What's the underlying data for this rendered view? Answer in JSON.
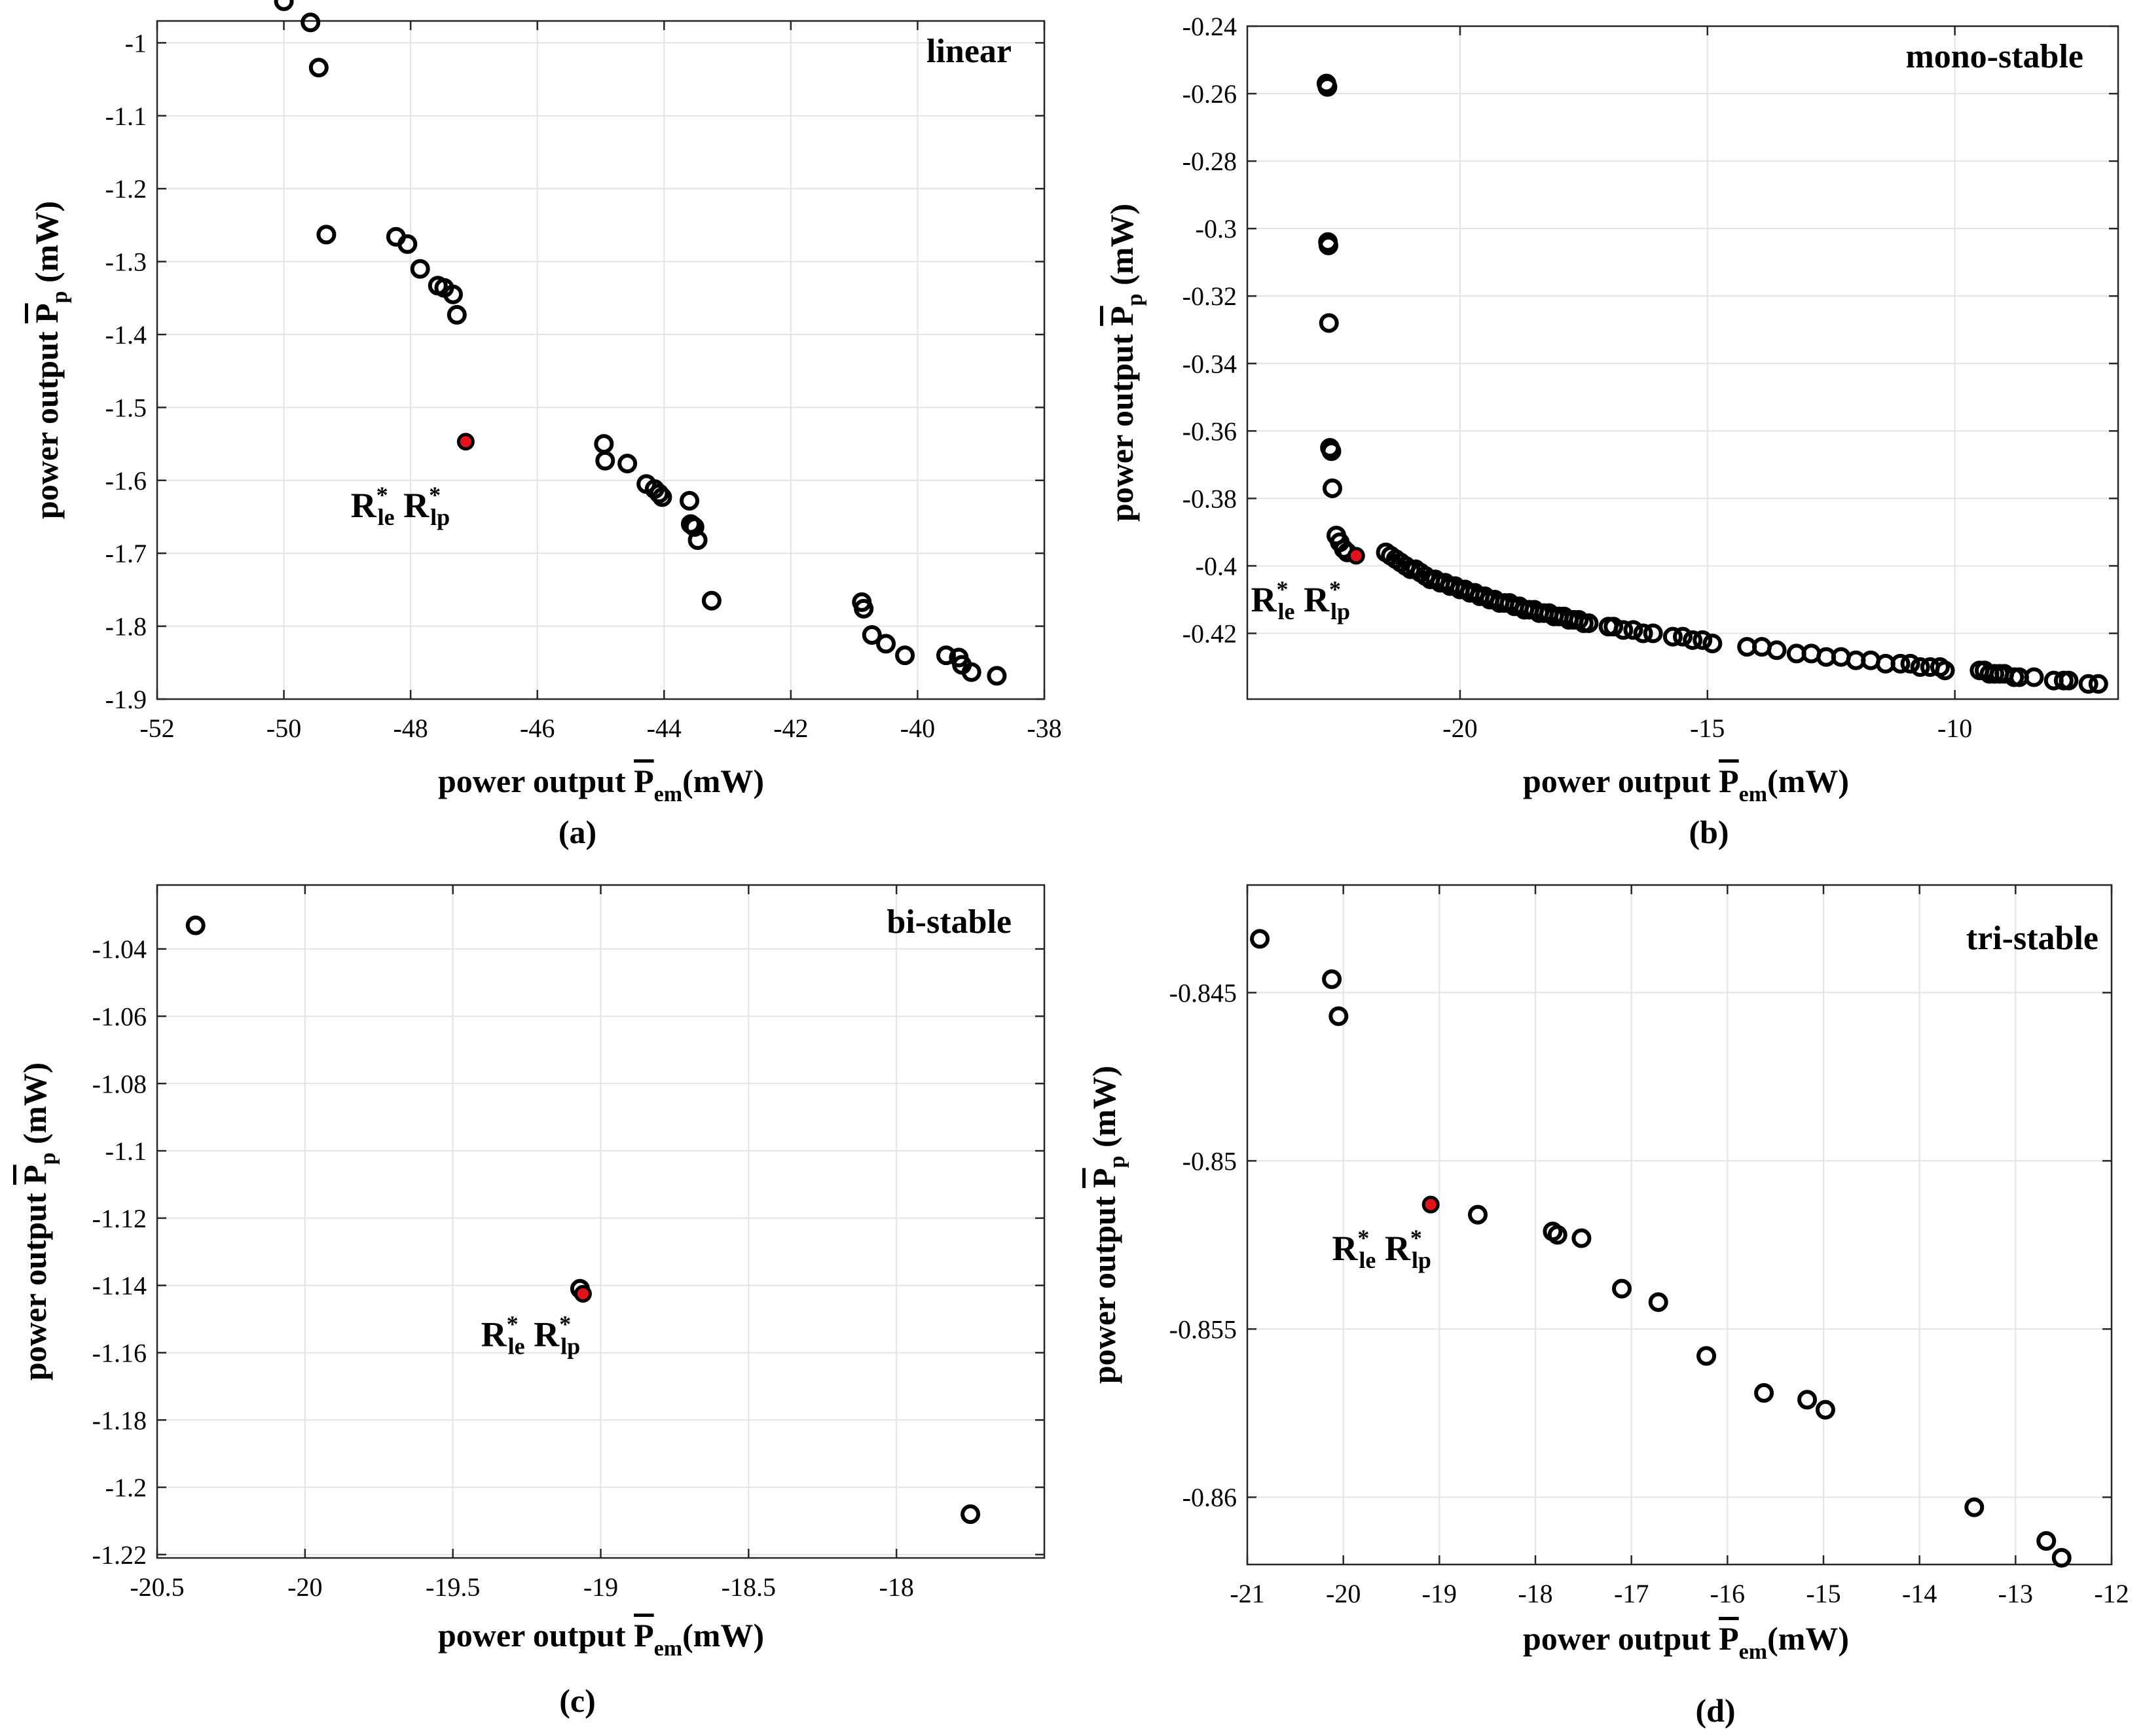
{
  "chart_data": [
    {
      "type": "scatter",
      "title": "linear",
      "caption": "(a)",
      "xlabel": "power output P̄em(mW)",
      "xlabel_main": "power output ",
      "xlabel_sym": "P",
      "xlabel_sub": "em",
      "xlabel_unit": "(mW)",
      "ylabel_main": "power output ",
      "ylabel_sym": "P",
      "ylabel_sub": "p",
      "ylabel_unit": " (mW)",
      "xlim": [
        -52,
        -38
      ],
      "ylim": [
        -1.9,
        -0.97
      ],
      "xticks": [
        -52,
        -50,
        -48,
        -46,
        -44,
        -42,
        -40,
        -38
      ],
      "xtick_labels": [
        "-52",
        "-50",
        "-48",
        "-46",
        "-44",
        "-42",
        "-40",
        "-38"
      ],
      "yticks": [
        -1.9,
        -1.8,
        -1.7,
        -1.6,
        -1.5,
        -1.4,
        -1.3,
        -1.2,
        -1.1,
        -1
      ],
      "ytick_labels": [
        "-1.9",
        "-1.8",
        "-1.7",
        "-1.6",
        "-1.5",
        "-1.4",
        "-1.3",
        "-1.2",
        "-1.1",
        "-1"
      ],
      "x": [
        -50.0,
        -49.58,
        -49.45,
        -49.33,
        -48.23,
        -48.05,
        -47.85,
        -47.57,
        -47.47,
        -47.33,
        -47.27,
        -44.95,
        -44.93,
        -44.58,
        -44.28,
        -44.15,
        -44.08,
        -44.03,
        -43.6,
        -43.58,
        -43.55,
        -43.52,
        -43.47,
        -43.25,
        -40.88,
        -40.85,
        -40.72,
        -40.5,
        -40.2,
        -39.55,
        -39.35,
        -39.3,
        -39.15,
        -38.75
      ],
      "y": [
        -0.943,
        -0.972,
        -1.034,
        -1.263,
        -1.266,
        -1.276,
        -1.31,
        -1.333,
        -1.336,
        -1.345,
        -1.373,
        -1.55,
        -1.573,
        -1.577,
        -1.605,
        -1.612,
        -1.618,
        -1.623,
        -1.628,
        -1.66,
        -1.662,
        -1.664,
        -1.682,
        -1.765,
        -1.767,
        -1.776,
        -1.812,
        -1.824,
        -1.84,
        -1.84,
        -1.843,
        -1.853,
        -1.863,
        -1.868
      ],
      "optimum": {
        "x": -47.13,
        "y": -1.547,
        "label": "R",
        "sup1": "*",
        "sub1": "le",
        "sup2": "*",
        "sub2": "lp"
      }
    },
    {
      "type": "scatter",
      "title": "mono-stable",
      "caption": "(b)",
      "xlabel_main": "power output ",
      "xlabel_sym": "P",
      "xlabel_sub": "em",
      "xlabel_unit": "(mW)",
      "ylabel_main": "power output ",
      "ylabel_sym": "P",
      "ylabel_sub": "p",
      "ylabel_unit": " (mW)",
      "xlim": [
        -24.3,
        -6.7
      ],
      "ylim": [
        -0.4395,
        -0.24
      ],
      "xticks": [
        -20,
        -15,
        -10
      ],
      "xtick_labels": [
        "-20",
        "-15",
        "-10"
      ],
      "yticks": [
        -0.42,
        -0.4,
        -0.38,
        -0.36,
        -0.34,
        -0.32,
        -0.3,
        -0.28,
        -0.26,
        -0.24
      ],
      "ytick_labels": [
        "-0.42",
        "-0.4",
        "-0.38",
        "-0.36",
        "-0.34",
        "-0.32",
        "-0.3",
        "-0.28",
        "-0.26",
        "-0.24"
      ],
      "x": [
        -22.7,
        -22.68,
        -22.67,
        -22.66,
        -22.65,
        -22.63,
        -22.6,
        -22.58,
        -22.5,
        -22.43,
        -22.35,
        -22.28,
        -21.5,
        -21.4,
        -21.3,
        -21.2,
        -21.1,
        -21.0,
        -20.9,
        -20.8,
        -20.7,
        -20.6,
        -20.5,
        -20.4,
        -20.3,
        -20.2,
        -20.1,
        -20.0,
        -19.9,
        -19.8,
        -19.7,
        -19.6,
        -19.5,
        -19.4,
        -19.3,
        -19.2,
        -19.1,
        -19.0,
        -18.9,
        -18.8,
        -18.7,
        -18.6,
        -18.5,
        -18.4,
        -18.3,
        -18.2,
        -18.1,
        -18.0,
        -17.9,
        -17.8,
        -17.7,
        -17.6,
        -17.5,
        -17.4,
        -17.0,
        -16.9,
        -16.7,
        -16.5,
        -16.3,
        -16.1,
        -15.7,
        -15.5,
        -15.3,
        -15.1,
        -14.9,
        -14.2,
        -13.9,
        -13.6,
        -13.2,
        -12.9,
        -12.6,
        -12.3,
        -12.0,
        -11.7,
        -11.4,
        -11.1,
        -10.9,
        -10.7,
        -10.5,
        -10.3,
        -10.2,
        -9.5,
        -9.4,
        -9.3,
        -9.2,
        -9.1,
        -9.0,
        -8.8,
        -8.7,
        -8.4,
        -8.0,
        -7.8,
        -7.7,
        -7.3,
        -7.1
      ],
      "y": [
        -0.257,
        -0.258,
        -0.304,
        -0.305,
        -0.328,
        -0.365,
        -0.366,
        -0.377,
        -0.391,
        -0.393,
        -0.395,
        -0.396,
        -0.396,
        -0.397,
        -0.398,
        -0.399,
        -0.4,
        -0.401,
        -0.401,
        -0.402,
        -0.403,
        -0.404,
        -0.404,
        -0.405,
        -0.405,
        -0.406,
        -0.406,
        -0.407,
        -0.407,
        -0.408,
        -0.408,
        -0.409,
        -0.409,
        -0.41,
        -0.41,
        -0.411,
        -0.411,
        -0.411,
        -0.412,
        -0.412,
        -0.413,
        -0.413,
        -0.413,
        -0.414,
        -0.414,
        -0.414,
        -0.415,
        -0.415,
        -0.415,
        -0.416,
        -0.416,
        -0.416,
        -0.417,
        -0.417,
        -0.418,
        -0.418,
        -0.419,
        -0.419,
        -0.42,
        -0.42,
        -0.421,
        -0.421,
        -0.422,
        -0.422,
        -0.423,
        -0.424,
        -0.424,
        -0.425,
        -0.426,
        -0.426,
        -0.427,
        -0.427,
        -0.428,
        -0.428,
        -0.429,
        -0.429,
        -0.429,
        -0.43,
        -0.43,
        -0.43,
        -0.431,
        -0.431,
        -0.431,
        -0.432,
        -0.432,
        -0.432,
        -0.432,
        -0.433,
        -0.433,
        -0.433,
        -0.434,
        -0.434,
        -0.434,
        -0.435,
        -0.435
      ],
      "optimum": {
        "x": -22.1,
        "y": -0.397,
        "label": "R",
        "sup1": "*",
        "sub1": "le",
        "sup2": "*",
        "sub2": "lp"
      }
    },
    {
      "type": "scatter",
      "title": "bi-stable",
      "caption": "(c)",
      "xlabel_main": "power output ",
      "xlabel_sym": "P",
      "xlabel_sub": "em",
      "xlabel_unit": "(mW)",
      "ylabel_main": "power output ",
      "ylabel_sym": "P",
      "ylabel_sub": "p",
      "ylabel_unit": " (mW)",
      "xlim": [
        -20.5,
        -17.5
      ],
      "ylim": [
        -1.221,
        -1.021
      ],
      "xticks": [
        -20.5,
        -20,
        -19.5,
        -19,
        -18.5,
        -18
      ],
      "xtick_labels": [
        "-20.5",
        "-20",
        "-19.5",
        "-19",
        "-18.5",
        "-18"
      ],
      "yticks": [
        -1.22,
        -1.2,
        -1.18,
        -1.16,
        -1.14,
        -1.12,
        -1.1,
        -1.08,
        -1.06,
        -1.04
      ],
      "ytick_labels": [
        "-1.22",
        "-1.2",
        "-1.18",
        "-1.16",
        "-1.14",
        "-1.12",
        "-1.1",
        "-1.08",
        "-1.06",
        "-1.04"
      ],
      "x": [
        -20.37,
        -19.07,
        -17.75
      ],
      "y": [
        -1.033,
        -1.141,
        -1.208
      ],
      "optimum": {
        "x": -19.06,
        "y": -1.1425,
        "label": "R",
        "sup1": "*",
        "sub1": "le",
        "sup2": "*",
        "sub2": "lp"
      }
    },
    {
      "type": "scatter",
      "title": "tri-stable",
      "caption": "(d)",
      "xlabel_main": "power output ",
      "xlabel_sym": "P",
      "xlabel_sub": "em",
      "xlabel_unit": "(mW)",
      "ylabel_main": "power output ",
      "ylabel_sym": "P",
      "ylabel_sub": "p",
      "ylabel_unit": " (mW)",
      "xlim": [
        -21,
        -12
      ],
      "ylim": [
        -0.862,
        -0.8418
      ],
      "xticks": [
        -21,
        -20,
        -19,
        -18,
        -17,
        -16,
        -15,
        -14,
        -13,
        -12
      ],
      "xtick_labels": [
        "-21",
        "-20",
        "-19",
        "-18",
        "-17",
        "-16",
        "-15",
        "-14",
        "-13",
        "-12"
      ],
      "yticks": [
        -0.86,
        -0.855,
        -0.85,
        -0.845
      ],
      "ytick_labels": [
        "-0.86",
        "-0.855",
        "-0.85",
        "-0.845"
      ],
      "x": [
        -20.87,
        -20.12,
        -20.05,
        -18.6,
        -17.82,
        -17.77,
        -17.52,
        -17.1,
        -16.72,
        -16.22,
        -15.62,
        -15.17,
        -14.98,
        -13.43,
        -12.68,
        -12.52
      ],
      "y": [
        -0.8434,
        -0.8446,
        -0.8457,
        -0.8516,
        -0.8521,
        -0.8522,
        -0.8523,
        -0.8538,
        -0.8542,
        -0.8558,
        -0.8569,
        -0.8571,
        -0.8574,
        -0.8603,
        -0.8613,
        -0.8618
      ],
      "optimum": {
        "x": -19.09,
        "y": -0.8513,
        "label": "R",
        "sup1": "*",
        "sub1": "le",
        "sup2": "*",
        "sub2": "lp"
      }
    }
  ]
}
